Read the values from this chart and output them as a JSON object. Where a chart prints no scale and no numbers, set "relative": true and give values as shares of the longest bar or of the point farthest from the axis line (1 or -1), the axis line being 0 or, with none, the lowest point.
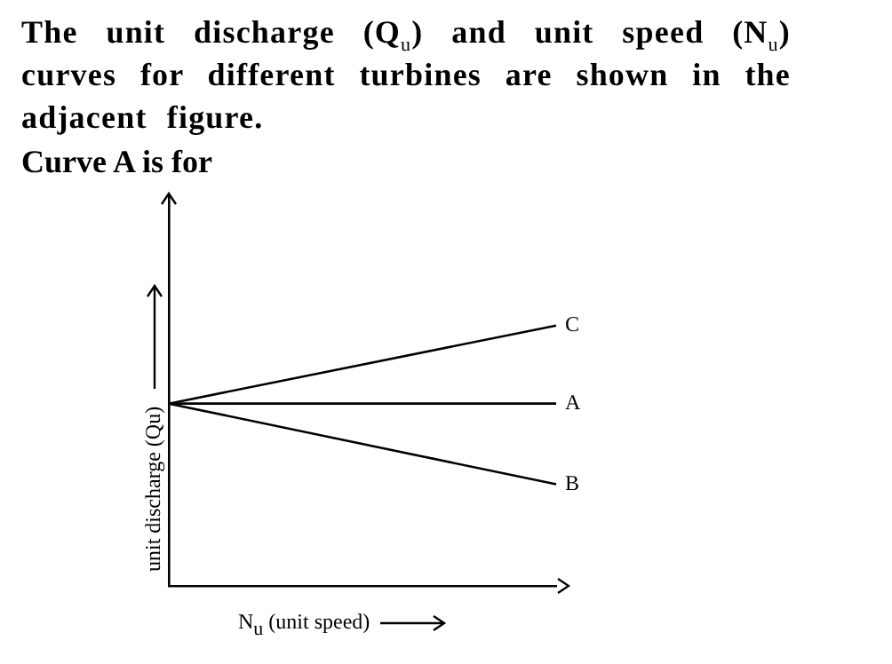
{
  "chart_data": {
    "type": "line",
    "title": "The unit discharge (Q$_{u}$) and  unit speed (N$_{u}$) curves for different turbines are shown in the adjacent figure.",
    "subtitle": "Curve A is for",
    "xlabel": "N$_{u}$ (unit speed)",
    "ylabel": "unit discharge (Qu)",
    "relative": true,
    "categories": [
      null,
      null
    ],
    "series": [
      {
        "name": "C",
        "color": "#000000",
        "values": [
          0.7,
          1
        ]
      },
      {
        "name": "A",
        "color": "#000000",
        "values": [
          0.7,
          0.7
        ]
      },
      {
        "name": "B",
        "color": "#000000",
        "values": [
          0.7,
          0.39
        ]
      }
    ],
    "legend": false,
    "grid": false,
    "marker": "none",
    "line_style": "solid"
  }
}
